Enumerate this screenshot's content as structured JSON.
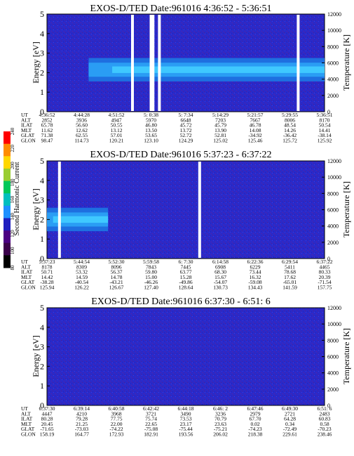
{
  "colorbar": {
    "label": "Second Harmonic Current",
    "ticks": [
      "80",
      "100",
      "120",
      "140",
      "160",
      "180",
      "200",
      "220",
      "240"
    ],
    "colors": [
      "#000000",
      "#3a004a",
      "#4b0082",
      "#1f1fbf",
      "#1e90ff",
      "#00bfbf",
      "#00c85a",
      "#9acd32",
      "#ffd700",
      "#ff8c00",
      "#ff0000"
    ]
  },
  "chart_data": [
    {
      "type": "heatmap",
      "title": "EXOS-D/TED   Date:961016  4:36:52 - 5:36:51",
      "ylabel": "Energy [eV]",
      "y2label": "Temperature [K]",
      "ylim": [
        0,
        5
      ],
      "y2lim": [
        0,
        12000
      ],
      "yticks": [
        "0",
        "1",
        "2",
        "3",
        "4",
        "5"
      ],
      "y2ticks": [
        "0",
        "2000",
        "4000",
        "6000",
        "8000",
        "10000",
        "12000"
      ],
      "band": {
        "start": 0.15,
        "end": 1.0,
        "low": 1.55,
        "high": 2.75
      },
      "gaps": [
        0.308,
        0.375,
        0.382,
        0.405,
        0.905
      ],
      "table": {
        "labels": [
          "UT",
          "ALT",
          "ILAT",
          "MLT",
          "GLAT",
          "GLON"
        ],
        "columns": [
          [
            "4:36:52",
            "2852",
            "65.78",
            "11.62",
            "71.38",
            "98.47"
          ],
          [
            "4:44:28",
            "3936",
            "56.60",
            "12.62",
            "62.55",
            "114.73"
          ],
          [
            "4:51:52",
            "4947",
            "50.55",
            "13.12",
            "57.01",
            "120.21"
          ],
          [
            "5: 0:38",
            "5970",
            "46.80",
            "13.50",
            "53.65",
            "123.10"
          ],
          [
            "5: 7:34",
            "6648",
            "45.72",
            "13.72",
            "52.72",
            "124.29"
          ],
          [
            "5:14:29",
            "7203",
            "45.79",
            "13.90",
            "52.81",
            "125.02"
          ],
          [
            "5:21:57",
            "7667",
            "46.78",
            "14.08",
            "-34.92",
            "125.46"
          ],
          [
            "5:29:55",
            "8006",
            "48.54",
            "14.26",
            "-36.42",
            "125.72"
          ],
          [
            "5:36:51",
            "8170",
            "50.54",
            "14.41",
            "-38.14",
            "125.92"
          ]
        ]
      }
    },
    {
      "type": "heatmap",
      "title": "EXOS-D/TED   Date:961016  5:37:23 - 6:37:22",
      "ylabel": "Energy [eV]",
      "y2label": "Temperature [K]",
      "ylim": [
        0,
        5
      ],
      "y2lim": [
        0,
        12000
      ],
      "yticks": [
        "0",
        "1",
        "2",
        "3",
        "4",
        "5"
      ],
      "y2ticks": [
        "0",
        "2000",
        "4000",
        "6000",
        "8000",
        "10000",
        "12000"
      ],
      "band": {
        "start": 0.0,
        "end": 0.22,
        "low": 1.4,
        "high": 2.6
      },
      "gaps": [
        0.045,
        0.55
      ],
      "table": {
        "labels": [
          "UT",
          "ALT",
          "ILAT",
          "MLT",
          "GLAT",
          "GLON"
        ],
        "columns": [
          [
            "5:37:23",
            "8178",
            "50.71",
            "14.42",
            "-38.28",
            "125.94"
          ],
          [
            "5:44:54",
            "8309",
            "53.32",
            "14.59",
            "-40.54",
            "126.22"
          ],
          [
            "5:52:30",
            "8096",
            "56.37",
            "14.78",
            "-43.21",
            "126.67"
          ],
          [
            "5:59:58",
            "7843",
            "59.80",
            "15.00",
            "-46.26",
            "127.40"
          ],
          [
            "6: 7:30",
            "7445",
            "63.77",
            "15.28",
            "-49.86",
            "128.64"
          ],
          [
            "6:14:58",
            "6908",
            "68.30",
            "15.67",
            "-54.07",
            "130.73"
          ],
          [
            "6:22:36",
            "6229",
            "73.44",
            "16.32",
            "-59.08",
            "134.43"
          ],
          [
            "6:29:54",
            "5411",
            "78.68",
            "17.62",
            "-65.01",
            "141.59"
          ],
          [
            "6:37:22",
            "4465",
            "80.33",
            "20.39",
            "-71.54",
            "157.75"
          ]
        ]
      }
    },
    {
      "type": "heatmap",
      "title": "EXOS-D/TED   Date:961016  6:37:30 - 6:51: 6",
      "ylabel": "Energy [eV]",
      "y2label": "Temperature [K]",
      "ylim": [
        0,
        5
      ],
      "y2lim": [
        0,
        12000
      ],
      "yticks": [
        "0",
        "1",
        "2",
        "3",
        "4",
        "5"
      ],
      "y2ticks": [
        "0",
        "2000",
        "4000",
        "6000",
        "8000",
        "10000",
        "12000"
      ],
      "band": null,
      "gaps": [],
      "table": {
        "labels": [
          "UT",
          "ALT",
          "ILAT",
          "MLT",
          "GLAT",
          "GLON"
        ],
        "columns": [
          [
            "6:37:30",
            "4447",
            "80.28",
            "20.45",
            "-71.65",
            "158.19"
          ],
          [
            "6:39:14",
            "4210",
            "79.28",
            "21.25",
            "-73.03",
            "164.77"
          ],
          [
            "6:40:58",
            "3968",
            "77.75",
            "22.00",
            "-74.22",
            "172.93"
          ],
          [
            "6:42:42",
            "3721",
            "75.74",
            "22.65",
            "-75.08",
            "182.91"
          ],
          [
            "6:44:18",
            "3490",
            "73.53",
            "23.17",
            "-75.44",
            "193.56"
          ],
          [
            "6:46: 2",
            "3236",
            "70.79",
            "23.63",
            "-75.21",
            "206.02"
          ],
          [
            "6:47:46",
            "2979",
            "67.70",
            "0.02",
            "-74.23",
            "218.38"
          ],
          [
            "6:49:30",
            "2721",
            "64.28",
            "0.34",
            "-72.49",
            "229.61"
          ],
          [
            "6:51: 6",
            "2483",
            "60.83",
            "0.58",
            "-70.23",
            "238.46"
          ]
        ]
      }
    }
  ]
}
